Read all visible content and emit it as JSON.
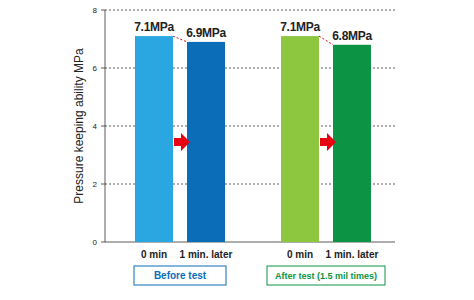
{
  "chart_data": {
    "type": "bar",
    "y_label": "Pressure keeping ability  MPa",
    "categories": [
      "0 min",
      "1 min. later",
      "0 min",
      "1 min. later"
    ],
    "values": [
      7.1,
      6.9,
      7.1,
      6.8
    ],
    "value_labels": [
      "7.1MPa",
      "6.9MPa",
      "7.1MPa",
      "6.8MPa"
    ],
    "colors": [
      "#2aa7e0",
      "#0b6db7",
      "#8dc63f",
      "#0c9444"
    ],
    "data_labels": true,
    "annotations": [
      "Before test",
      "After test (1.5 mil times)"
    ],
    "ylim": [
      0,
      8
    ],
    "yticks": [
      0,
      2,
      4,
      6,
      8
    ],
    "grid": true
  }
}
